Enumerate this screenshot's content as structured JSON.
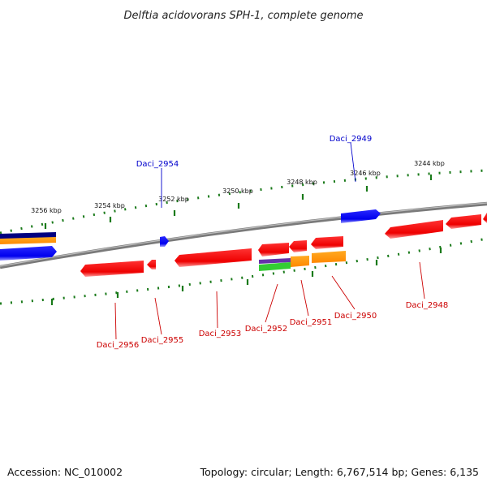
{
  "title": "Delftia acidovorans SPH-1, complete genome",
  "footer": {
    "accession": "Accession: NC_010002",
    "summary": "Topology: circular; Length: 6,767,514 bp; Genes: 6,135"
  },
  "colors": {
    "backbone": "#808080",
    "tick": "#1a7a1a",
    "forward_gene": "#0000ff",
    "reverse_gene": "#ff0000",
    "forward_label": "#0000cc",
    "reverse_label": "#cc0000",
    "navy": "#000080",
    "orange": "#ff9900",
    "green": "#33cc33",
    "purple": "#6633aa"
  },
  "kbp_labels": [
    "3256 kbp",
    "3254 kbp",
    "3252 kbp",
    "3250 kbp",
    "3248 kbp",
    "3246 kbp",
    "3244 kbp"
  ],
  "forward_labels": [
    "Daci_2954",
    "Daci_2949"
  ],
  "reverse_labels": [
    "Daci_2956",
    "Daci_2955",
    "Daci_2953",
    "Daci_2952",
    "Daci_2951",
    "Daci_2950",
    "Daci_2948"
  ]
}
